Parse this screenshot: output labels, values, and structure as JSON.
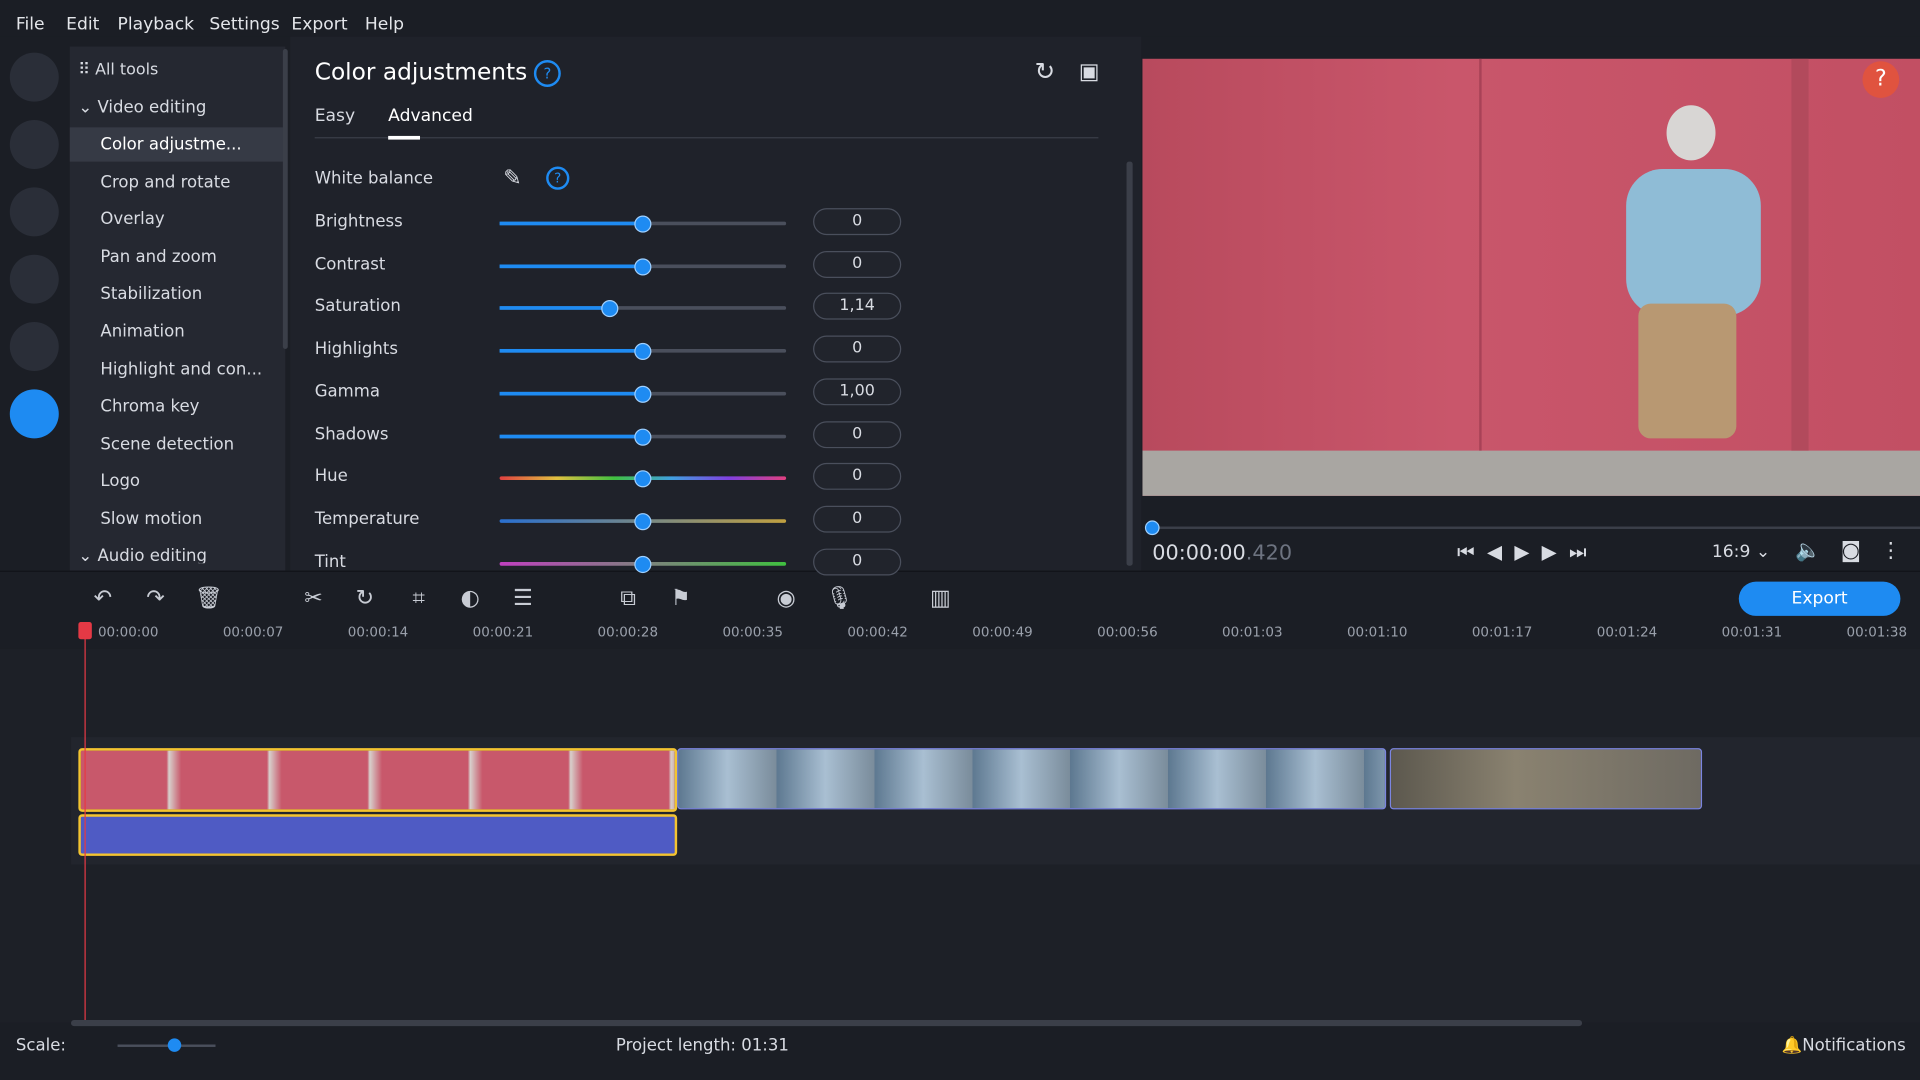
{
  "menu": [
    "File",
    "Edit",
    "Playback",
    "Settings",
    "Export",
    "Help"
  ],
  "tools": {
    "all": "All tools",
    "group": "Video editing",
    "items": [
      "Color adjustme...",
      "Crop and rotate",
      "Overlay",
      "Pan and zoom",
      "Stabilization",
      "Animation",
      "Highlight and con...",
      "Chroma key",
      "Scene detection",
      "Logo",
      "Slow motion"
    ],
    "next_group": "Audio editing"
  },
  "panel": {
    "title": "Color adjustments",
    "tabs": [
      "Easy",
      "Advanced"
    ],
    "white_balance": "White balance",
    "rows": [
      {
        "label": "Brightness",
        "value": "0"
      },
      {
        "label": "Contrast",
        "value": "0"
      },
      {
        "label": "Saturation",
        "value": "1,14"
      },
      {
        "label": "Highlights",
        "value": "0"
      },
      {
        "label": "Gamma",
        "value": "1,00"
      },
      {
        "label": "Shadows",
        "value": "0"
      },
      {
        "label": "Hue",
        "value": "0"
      },
      {
        "label": "Temperature",
        "value": "0"
      },
      {
        "label": "Tint",
        "value": "0"
      }
    ]
  },
  "player": {
    "time": "00:00:00",
    "ms": ".420",
    "aspect": "16:9"
  },
  "export": "Export",
  "timeline": {
    "ticks": [
      "00:00:00",
      "00:00:07",
      "00:00:14",
      "00:00:21",
      "00:00:28",
      "00:00:35",
      "00:00:42",
      "00:00:49",
      "00:00:56",
      "00:01:03",
      "00:01:10",
      "00:01:17",
      "00:01:24",
      "00:01:31",
      "00:01:38"
    ]
  },
  "status": {
    "scale": "Scale:",
    "project_length": "Project length: 01:31",
    "notifications": "Notifications"
  }
}
